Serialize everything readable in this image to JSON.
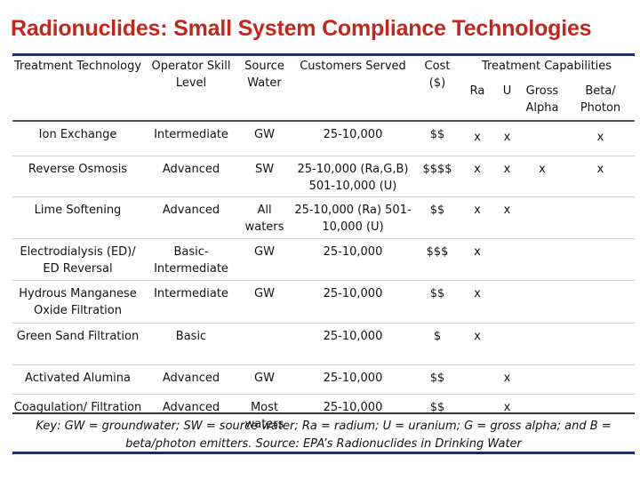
{
  "title": "Radionuclides: Small System Compliance Technologies",
  "headers": {
    "treatment": "Treatment Technology",
    "operator": "Operator Skill Level",
    "source": "Source Water",
    "customers": "Customers Served",
    "cost": "Cost ($)",
    "capabilities": "Treatment Capabilities",
    "ra": "Ra",
    "u": "U",
    "gross": "Gross Alpha",
    "beta": "Beta/ Photon"
  },
  "rows": [
    {
      "tech": "Ion Exchange",
      "skill": "Intermediate",
      "water": "GW",
      "customers": "25-10,000",
      "cost": "$$",
      "ra": "x",
      "u": "x",
      "gross": "",
      "beta": "x"
    },
    {
      "tech": "Reverse Osmosis",
      "skill": "Advanced",
      "water": "SW",
      "customers": "25-10,000 (Ra,G,B) 501-10,000 (U)",
      "cost": "$$$$",
      "ra": "x",
      "u": "x",
      "gross": "x",
      "beta": "x"
    },
    {
      "tech": "Lime Softening",
      "skill": "Advanced",
      "water": "All waters",
      "customers": "25-10,000 (Ra) 501-10,000 (U)",
      "cost": "$$",
      "ra": "x",
      "u": "x",
      "gross": "",
      "beta": ""
    },
    {
      "tech": "Electrodialysis (ED)/ ED Reversal",
      "skill": "Basic-Intermediate",
      "water": "GW",
      "customers": "25-10,000",
      "cost": "$$$",
      "ra": "x",
      "u": "",
      "gross": "",
      "beta": ""
    },
    {
      "tech": "Hydrous Manganese Oxide Filtration",
      "skill": "Intermediate",
      "water": "GW",
      "customers": "25-10,000",
      "cost": "$$",
      "ra": "x",
      "u": "",
      "gross": "",
      "beta": ""
    },
    {
      "tech": "Green Sand Filtration",
      "skill": "Basic",
      "water": "",
      "customers": "25-10,000",
      "cost": "$",
      "ra": "x",
      "u": "",
      "gross": "",
      "beta": ""
    },
    {
      "tech": "Activated Alumina",
      "skill": "Advanced",
      "water": "GW",
      "customers": "25-10,000",
      "cost": "$$",
      "ra": "",
      "u": "x",
      "gross": "",
      "beta": ""
    },
    {
      "tech": "Coagulation/ Filtration",
      "skill": "Advanced",
      "water": "Most waters",
      "customers": "25-10,000",
      "cost": "$$",
      "ra": "",
      "u": "x",
      "gross": "",
      "beta": ""
    }
  ],
  "key": "Key: GW = groundwater; SW = source water; Ra = radium; U = uranium; G = gross alpha; and B = beta/photon emitters. Source: EPA’s Radionuclides in Drinking Water"
}
